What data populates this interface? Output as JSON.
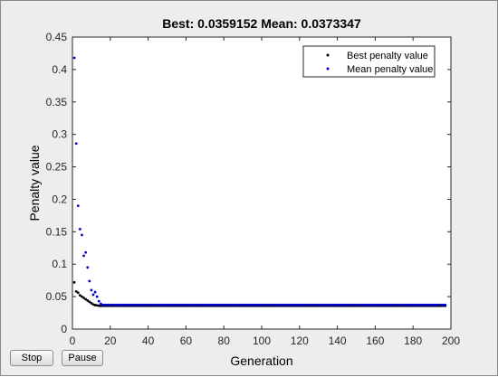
{
  "buttons": {
    "stop_label": "Stop",
    "pause_label": "Pause"
  },
  "chart_data": {
    "type": "scatter",
    "title": "Best: 0.0359152 Mean: 0.0373347",
    "xlabel": "Generation",
    "ylabel": "Penalty value",
    "xlim": [
      0,
      200
    ],
    "ylim": [
      0,
      0.45
    ],
    "xticks": [
      0,
      20,
      40,
      60,
      80,
      100,
      120,
      140,
      160,
      180,
      200
    ],
    "yticks": [
      0,
      0.05,
      0.1,
      0.15,
      0.2,
      0.25,
      0.3,
      0.35,
      0.4,
      0.45
    ],
    "grid": false,
    "legend_position": "top-right",
    "series": [
      {
        "name": "Best penalty value",
        "color": "#000000",
        "x": [
          1,
          2,
          3,
          4,
          5,
          6,
          7,
          8,
          9,
          10,
          11,
          12,
          13,
          14,
          15
        ],
        "y": [
          0.072,
          0.058,
          0.056,
          0.052,
          0.05,
          0.048,
          0.046,
          0.044,
          0.042,
          0.04,
          0.038,
          0.037,
          0.0365,
          0.036,
          0.0359
        ],
        "tail": {
          "from": 16,
          "to": 197,
          "value": 0.0359
        }
      },
      {
        "name": "Mean penalty value",
        "color": "#0000cd",
        "x": [
          1,
          2,
          3,
          4,
          5,
          6,
          7,
          8,
          9,
          10,
          11,
          12,
          13,
          14,
          15
        ],
        "y": [
          0.418,
          0.286,
          0.19,
          0.154,
          0.145,
          0.113,
          0.118,
          0.095,
          0.074,
          0.06,
          0.053,
          0.057,
          0.05,
          0.043,
          0.039
        ],
        "tail": {
          "from": 16,
          "to": 197,
          "value": 0.0373
        }
      }
    ]
  }
}
